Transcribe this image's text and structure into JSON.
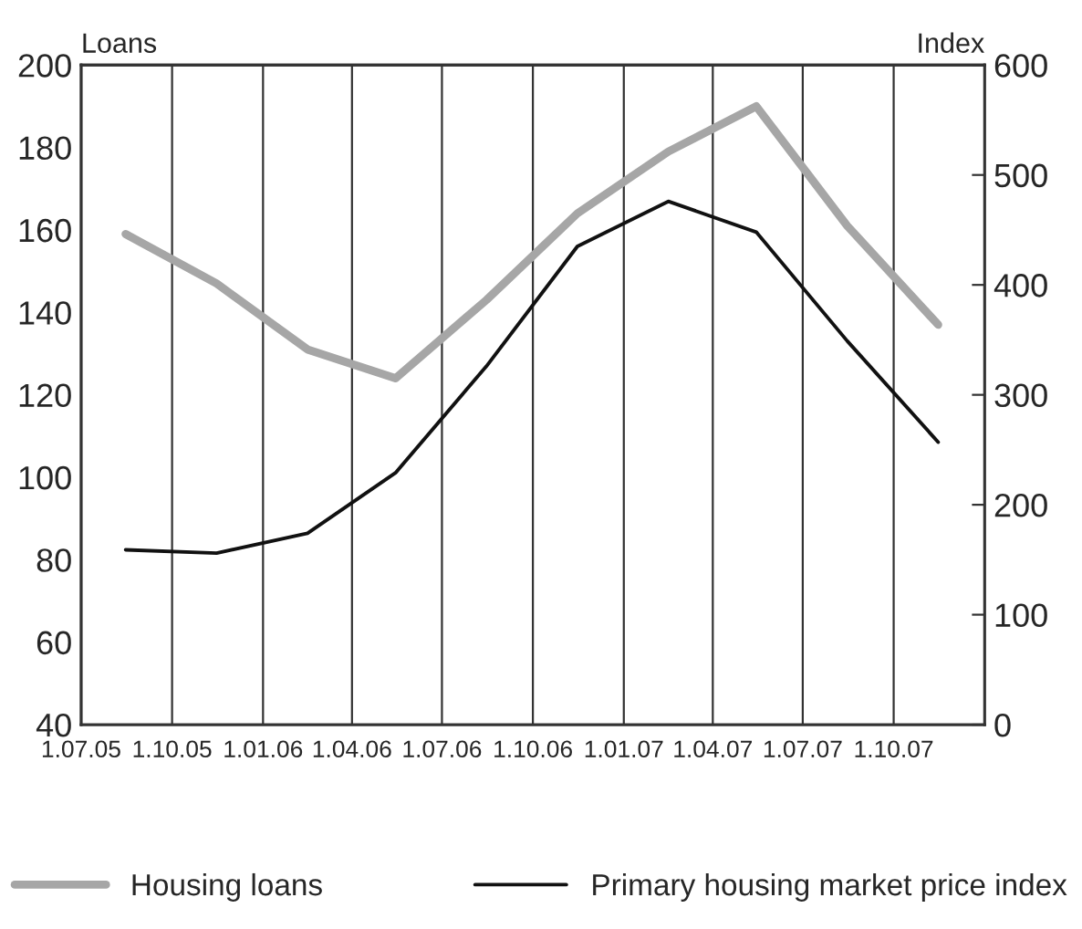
{
  "chart_data": {
    "type": "line",
    "ylabel": "Loans",
    "y2label": "Index",
    "x": [
      "2005-08-15",
      "2005-11-15",
      "2006-02-15",
      "2006-05-15",
      "2006-08-15",
      "2006-11-15",
      "2007-02-15",
      "2007-05-15",
      "2007-08-15",
      "2007-11-15"
    ],
    "series": [
      {
        "name": "Housing loans",
        "color": "#a6a6a6",
        "values": [
          159,
          147,
          131,
          124,
          143,
          164,
          179,
          190,
          161,
          137
        ]
      },
      {
        "name": "Primary housing market price index",
        "color": "#111111",
        "axis": "y2",
        "values": [
          159,
          156,
          174,
          229,
          326,
          435,
          476,
          448,
          349,
          257
        ]
      }
    ],
    "xlim": [
      "2005-07-01",
      "2008-01-01"
    ],
    "xticks": [
      {
        "value": "2005-07-01",
        "label": "1.07.05"
      },
      {
        "value": "2005-10-01",
        "label": "1.10.05"
      },
      {
        "value": "2006-01-01",
        "label": "1.01.06"
      },
      {
        "value": "2006-04-01",
        "label": "1.04.06"
      },
      {
        "value": "2006-07-01",
        "label": "1.07.06"
      },
      {
        "value": "2006-10-01",
        "label": "1.10.06"
      },
      {
        "value": "2007-01-01",
        "label": "1.01.07"
      },
      {
        "value": "2007-04-01",
        "label": "1.04.07"
      },
      {
        "value": "2007-07-01",
        "label": "1.07.07"
      },
      {
        "value": "2007-10-01",
        "label": "1.10.07"
      }
    ],
    "ylim": [
      40,
      200
    ],
    "yticks": [
      40,
      60,
      80,
      100,
      120,
      140,
      160,
      180,
      200
    ],
    "y2lim": [
      0,
      600
    ],
    "y2ticks": [
      0,
      100,
      200,
      300,
      400,
      500,
      600
    ],
    "grid": "x",
    "legend": "bottom",
    "marker": "none",
    "line_style": "solid"
  }
}
